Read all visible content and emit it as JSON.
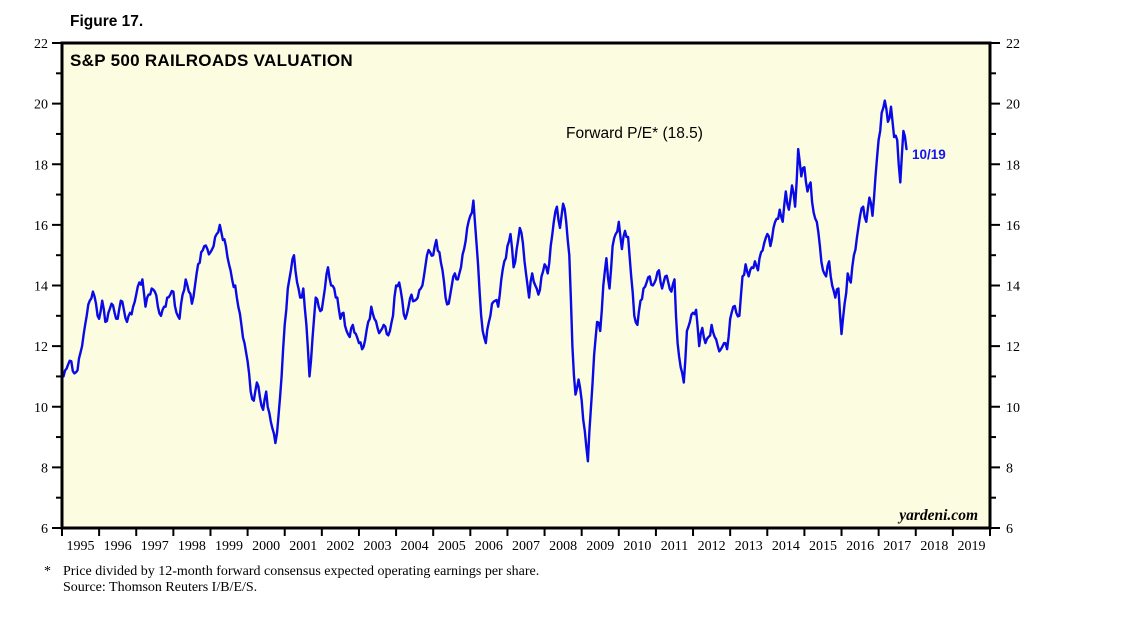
{
  "figure_label": "Figure 17.",
  "chart": {
    "title": "S&P 500 RAILROADS VALUATION",
    "series_annotation": "Forward P/E* (18.5)",
    "latest_label": "10/19",
    "watermark": "yardeni.com"
  },
  "colors": {
    "line": "#0A0AE8",
    "latest_label": "#1515EF",
    "plot_bg": "#FCFCE0",
    "frame": "#000000",
    "text": "#000000"
  },
  "footnote": {
    "marker": "*",
    "line1": "Price divided by 12-month forward consensus expected operating earnings per share.",
    "line2": "Source: Thomson Reuters I/B/E/S."
  },
  "chart_data": {
    "type": "line",
    "title": "S&P 500 RAILROADS VALUATION",
    "series_name": "Forward P/E",
    "latest_value": 18.5,
    "latest_date_label": "10/19",
    "annotation": "Forward P/E* (18.5)",
    "x_axis": {
      "start_year": 1995,
      "end_year": 2019,
      "tick_years": [
        1995,
        1996,
        1997,
        1998,
        1999,
        2000,
        2001,
        2002,
        2003,
        2004,
        2005,
        2006,
        2007,
        2008,
        2009,
        2010,
        2011,
        2012,
        2013,
        2014,
        2015,
        2016,
        2017,
        2018,
        2019
      ]
    },
    "y_axis": {
      "min": 6,
      "max": 22,
      "major_step": 2,
      "minor_step": 1,
      "tick_labels": [
        6,
        8,
        10,
        12,
        14,
        16,
        18,
        20,
        22
      ]
    },
    "xlim": [
      1995,
      2020
    ],
    "ylim": [
      6,
      22
    ],
    "grid": false,
    "legend": "none",
    "x_start": 1995.0,
    "x_step_months": 1,
    "values": [
      11.1,
      11.2,
      11.4,
      11.5,
      11.1,
      11.2,
      11.8,
      12.4,
      13.0,
      13.5,
      13.8,
      13.4,
      12.9,
      13.5,
      12.8,
      13.1,
      13.4,
      13.1,
      12.9,
      13.5,
      13.2,
      12.8,
      13.1,
      13.3,
      13.7,
      14.1,
      14.2,
      13.3,
      13.7,
      13.9,
      13.8,
      13.3,
      13.0,
      13.3,
      13.6,
      13.7,
      13.8,
      13.1,
      12.9,
      13.7,
      14.2,
      13.8,
      13.4,
      14.0,
      14.7,
      15.1,
      15.3,
      15.2,
      15.1,
      15.3,
      15.7,
      16.0,
      15.5,
      15.3,
      14.7,
      14.2,
      14.0,
      13.3,
      12.7,
      12.1,
      11.5,
      10.5,
      10.2,
      10.8,
      10.3,
      9.9,
      10.5,
      9.8,
      9.3,
      8.8,
      9.7,
      11.0,
      12.7,
      13.9,
      14.5,
      15.0,
      14.1,
      13.6,
      13.9,
      12.7,
      11.0,
      12.3,
      13.6,
      13.3,
      13.2,
      13.9,
      14.6,
      14.0,
      13.9,
      13.6,
      12.9,
      13.1,
      12.5,
      12.3,
      12.7,
      12.4,
      12.1,
      11.9,
      12.2,
      12.8,
      13.3,
      12.9,
      12.6,
      12.5,
      12.7,
      12.4,
      12.5,
      13.0,
      14.0,
      14.1,
      13.5,
      12.9,
      13.3,
      13.7,
      13.5,
      13.6,
      13.9,
      14.3,
      15.0,
      15.1,
      15.0,
      15.5,
      15.1,
      14.5,
      13.6,
      13.4,
      14.0,
      14.4,
      14.2,
      14.6,
      15.2,
      15.9,
      16.3,
      16.8,
      15.4,
      13.8,
      12.5,
      12.1,
      12.8,
      13.4,
      13.5,
      13.3,
      14.2,
      14.8,
      15.3,
      15.7,
      14.6,
      15.2,
      15.9,
      15.4,
      14.4,
      13.6,
      14.4,
      14.0,
      13.7,
      14.3,
      14.7,
      14.4,
      15.3,
      16.1,
      16.6,
      15.9,
      16.7,
      16.1,
      15.0,
      12.0,
      10.4,
      10.9,
      10.2,
      9.2,
      8.2,
      10.0,
      11.7,
      12.8,
      12.5,
      14.0,
      14.9,
      13.9,
      15.3,
      15.7,
      16.1,
      15.2,
      15.8,
      15.6,
      14.3,
      13.0,
      12.7,
      13.5,
      13.9,
      14.1,
      14.3,
      14.0,
      14.2,
      14.5,
      13.9,
      14.3,
      14.1,
      13.8,
      14.2,
      12.1,
      11.3,
      10.8,
      12.5,
      12.8,
      13.1,
      13.2,
      12.0,
      12.6,
      12.1,
      12.3,
      12.7,
      12.3,
      12.0,
      11.9,
      12.1,
      11.9,
      12.9,
      13.3,
      13.1,
      13.0,
      14.3,
      14.7,
      14.3,
      14.6,
      14.8,
      14.5,
      15.1,
      15.4,
      15.7,
      15.3,
      15.9,
      16.2,
      16.5,
      16.1,
      17.1,
      16.5,
      17.3,
      16.6,
      18.5,
      17.6,
      17.9,
      17.1,
      17.4,
      16.4,
      16.1,
      15.3,
      14.5,
      14.3,
      14.8,
      14.0,
      13.6,
      13.9,
      12.4,
      13.4,
      14.4,
      14.1,
      15.0,
      15.6,
      16.3,
      16.6,
      16.1,
      16.9,
      16.3,
      17.6,
      18.8,
      19.7,
      20.1,
      19.4,
      19.9,
      18.9,
      18.8,
      17.4,
      19.1,
      18.5
    ]
  }
}
